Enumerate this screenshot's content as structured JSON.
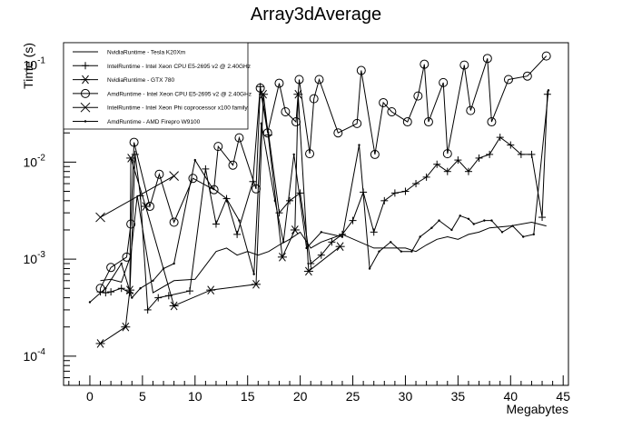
{
  "chart_data": {
    "type": "line",
    "title": "Array3dAverage",
    "xlabel": "Megabytes",
    "ylabel": "Time (s)",
    "xlim": [
      -2.5,
      45.5
    ],
    "ylim": [
      5e-05,
      0.17
    ],
    "yscale": "log",
    "grid": false,
    "legend_position": "top-left",
    "x_ticks": [
      0,
      5,
      10,
      15,
      20,
      25,
      30,
      35,
      40,
      45
    ],
    "y_ticks": [
      {
        "value": 0.0001,
        "base": "10",
        "exp": "-4"
      },
      {
        "value": 0.001,
        "base": "10",
        "exp": "-3"
      },
      {
        "value": 0.01,
        "base": "10",
        "exp": "-2"
      },
      {
        "value": 0.1,
        "base": "10",
        "exp": "-1"
      }
    ],
    "series": [
      {
        "name": "NvidiaRuntime - Tesla K20Xm",
        "marker": "none",
        "x": [
          1,
          2,
          3,
          3.9,
          4.5,
          6,
          8,
          10,
          12,
          13,
          14,
          15,
          16,
          17,
          18,
          19,
          20,
          21,
          22,
          24,
          27,
          30,
          31,
          32,
          33,
          34,
          35,
          36,
          37,
          38,
          40,
          42,
          43.4
        ],
        "y": [
          0.0006,
          0.00062,
          0.00058,
          0.0011,
          0.0045,
          0.00045,
          0.0006,
          0.00062,
          0.0012,
          0.0013,
          0.0011,
          0.0012,
          0.0011,
          0.0012,
          0.0014,
          0.0016,
          0.0019,
          0.0013,
          0.0015,
          0.0018,
          0.0013,
          0.0013,
          0.0012,
          0.0014,
          0.0016,
          0.0017,
          0.0016,
          0.0018,
          0.0019,
          0.0021,
          0.0022,
          0.0024,
          0.0022
        ]
      },
      {
        "name": "IntelRuntime - Intel Xeon CPU E5-2695 v2 @ 2.40GHz",
        "marker": "plus",
        "x": [
          1,
          1.5,
          2,
          3,
          3.8,
          4.3,
          4.8,
          5.5,
          6.5,
          7.5,
          9.5,
          11,
          12,
          13,
          14,
          15.5,
          16.2,
          17,
          18,
          19,
          20,
          21,
          22,
          23,
          24,
          25,
          26,
          27,
          28,
          29,
          30,
          31,
          32,
          33,
          34,
          35,
          36,
          37,
          38,
          39,
          40,
          41,
          42,
          43,
          43.5
        ],
        "y": [
          0.00046,
          0.00045,
          0.00046,
          0.0005,
          0.00045,
          0.012,
          0.0045,
          0.0003,
          0.0004,
          0.00042,
          0.00047,
          0.0085,
          0.0023,
          0.0042,
          0.0018,
          0.0063,
          0.06,
          0.019,
          0.003,
          0.004,
          0.0048,
          0.0009,
          0.0011,
          0.0015,
          0.0018,
          0.0025,
          0.0049,
          0.0019,
          0.004,
          0.0048,
          0.005,
          0.006,
          0.007,
          0.0095,
          0.008,
          0.0105,
          0.008,
          0.011,
          0.012,
          0.018,
          0.015,
          0.012,
          0.012,
          0.0027,
          0.05
        ]
      },
      {
        "name": "NvidiaRuntime - GTX 780",
        "marker": "asterisk",
        "x": [
          1,
          3.4,
          3.8,
          3.9,
          5.3,
          8,
          11.5,
          15.8,
          16.5,
          18.3,
          19.5,
          19.8,
          20.8,
          23.8
        ],
        "y": [
          0.000135,
          0.0002,
          0.00048,
          0.011,
          0.0035,
          0.00033,
          0.00048,
          0.00055,
          0.05,
          0.00105,
          0.002,
          0.05,
          0.00075,
          0.00135
        ]
      },
      {
        "name": "AmdRuntime - Intel Xeon CPU E5-2695 v2 @ 2.40GHz",
        "marker": "circle",
        "x": [
          1,
          2,
          3.5,
          3.9,
          4.2,
          5.7,
          6.6,
          8,
          9.8,
          11.8,
          12.2,
          13.6,
          14.2,
          15.8,
          16.2,
          16.9,
          18.0,
          18.6,
          19.6,
          19.9,
          20.9,
          21.3,
          21.8,
          23.6,
          25.4,
          25.8,
          27.1,
          27.9,
          28.7,
          30.2,
          31.2,
          31.8,
          32.2,
          33.6,
          34.0,
          35.6,
          36.2,
          37.8,
          38.2,
          39.8,
          41.6,
          43.4
        ],
        "y": [
          0.0005,
          0.00082,
          0.00105,
          0.0023,
          0.016,
          0.0035,
          0.0075,
          0.0024,
          0.0068,
          0.0052,
          0.0145,
          0.0093,
          0.0178,
          0.0053,
          0.058,
          0.02,
          0.065,
          0.033,
          0.026,
          0.071,
          0.0122,
          0.045,
          0.071,
          0.02,
          0.025,
          0.088,
          0.012,
          0.041,
          0.033,
          0.026,
          0.048,
          0.102,
          0.026,
          0.066,
          0.0122,
          0.1,
          0.034,
          0.117,
          0.026,
          0.071,
          0.077,
          0.124
        ]
      },
      {
        "name": "IntelRuntime - Intel Xeon Phi coprocessor x100 family",
        "marker": "cross",
        "x": [
          1,
          8
        ],
        "y": [
          0.0027,
          0.0072
        ]
      },
      {
        "name": "AmdRuntime - AMD Firepro W9100",
        "marker": "dot",
        "x": [
          0,
          1.5,
          3,
          4,
          4.8,
          6,
          7,
          8,
          10,
          11.6,
          13,
          14.2,
          15.6,
          16.3,
          17.6,
          18.4,
          19.4,
          20.6,
          22,
          24,
          25.6,
          26.6,
          27.5,
          28.6,
          29.6,
          30.6,
          31.4,
          32.5,
          33.2,
          34.4,
          35.2,
          36,
          36.5,
          37.5,
          38.2,
          39.2,
          40.2,
          41.2,
          42.2,
          43.6
        ],
        "y": [
          0.00036,
          0.0005,
          0.0009,
          0.0004,
          0.0005,
          0.0006,
          0.0008,
          0.0009,
          0.0105,
          0.0055,
          0.0042,
          0.0025,
          0.0007,
          0.025,
          0.004,
          0.0015,
          0.012,
          0.0013,
          0.0019,
          0.0017,
          0.015,
          0.0008,
          0.0012,
          0.0015,
          0.0012,
          0.0012,
          0.0017,
          0.0021,
          0.0025,
          0.002,
          0.0028,
          0.0026,
          0.0023,
          0.0025,
          0.0025,
          0.0019,
          0.0022,
          0.0017,
          0.0018,
          0.055
        ]
      }
    ]
  }
}
